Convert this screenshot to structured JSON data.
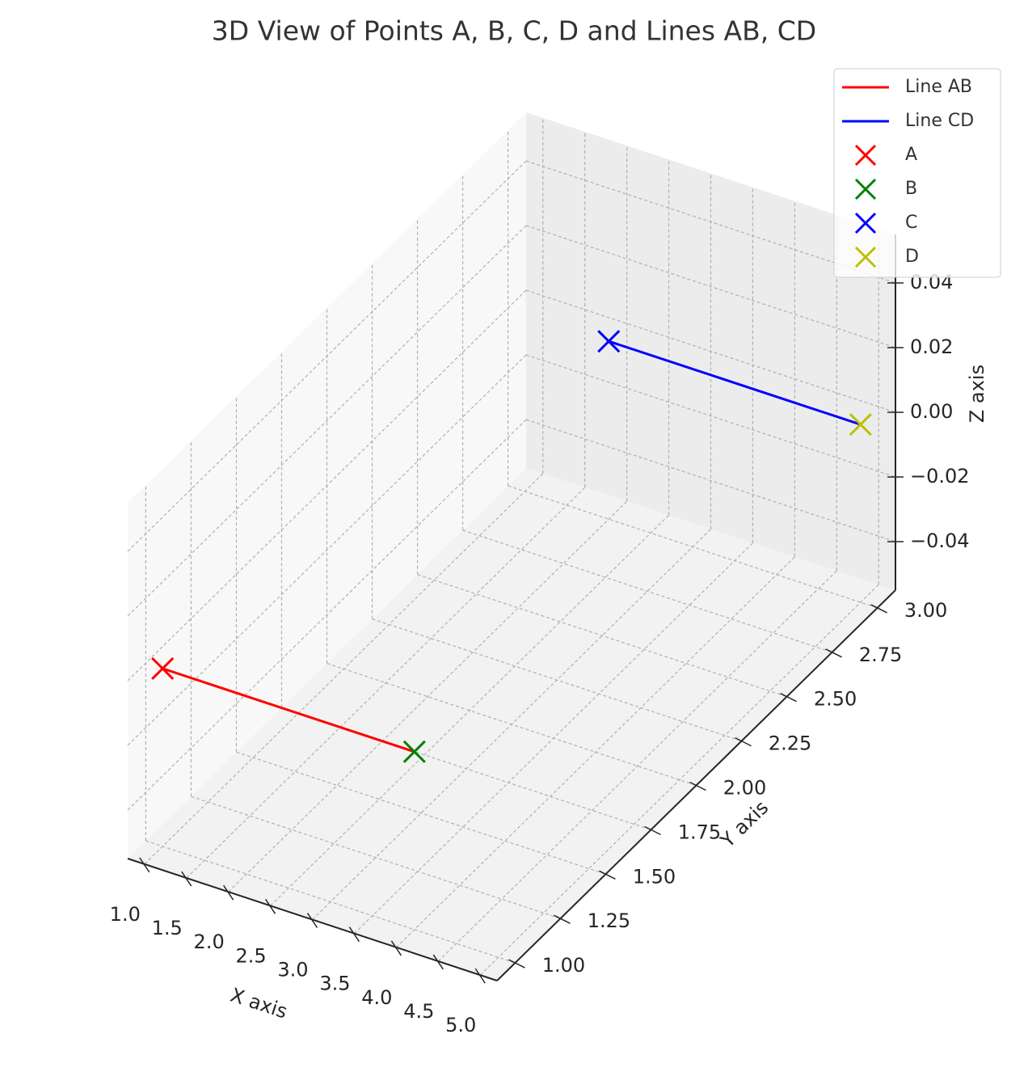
{
  "chart_data": {
    "type": "line3d",
    "title": "3D View of Points A, B, C, D and Lines AB, CD",
    "xlabel": "X axis",
    "ylabel": "Y axis",
    "zlabel": "Z axis",
    "xlim": [
      0.8,
      5.2
    ],
    "ylim": [
      0.9,
      3.1
    ],
    "zlim": [
      -0.055,
      0.055
    ],
    "xticks": [
      {
        "value": 1,
        "label": "1.0"
      },
      1.5,
      {
        "value": 2,
        "label": "2.0"
      },
      2.5,
      {
        "value": 3,
        "label": "3.0"
      },
      3.5,
      {
        "value": 4,
        "label": "4.0"
      },
      4.5,
      {
        "value": 5,
        "label": "5.0"
      }
    ],
    "yticks": [
      {
        "value": 1,
        "label": "1.00"
      },
      1.25,
      {
        "value": 1.5,
        "label": "1.50"
      },
      1.75,
      {
        "value": 2,
        "label": "2.00"
      },
      2.25,
      {
        "value": 2.5,
        "label": "2.50"
      },
      2.75,
      {
        "value": 3,
        "label": "3.00"
      }
    ],
    "zticks": [
      {
        "value": -0.04,
        "label": "−0.04"
      },
      {
        "value": -0.02,
        "label": "−0.02"
      },
      {
        "value": 0,
        "label": "0.00"
      },
      0.02,
      0.04
    ],
    "grid": true,
    "legend": "upper right",
    "series": [
      {
        "name": "Line AB",
        "color": "#ff0000",
        "x": [
          1,
          4
        ],
        "y": [
          1,
          1
        ],
        "z": [
          0,
          0
        ]
      },
      {
        "name": "Line CD",
        "color": "#0000ff",
        "x": [
          2,
          5
        ],
        "y": [
          3,
          3
        ],
        "z": [
          0,
          0
        ]
      }
    ],
    "points": [
      {
        "name": "A",
        "color": "#ff0000",
        "x": 1,
        "y": 1,
        "z": 0
      },
      {
        "name": "B",
        "color": "#008000",
        "x": 4,
        "y": 1,
        "z": 0
      },
      {
        "name": "C",
        "color": "#0000ff",
        "x": 2,
        "y": 3,
        "z": 0
      },
      {
        "name": "D",
        "color": "#bfbf00",
        "x": 5,
        "y": 3,
        "z": 0
      }
    ]
  }
}
